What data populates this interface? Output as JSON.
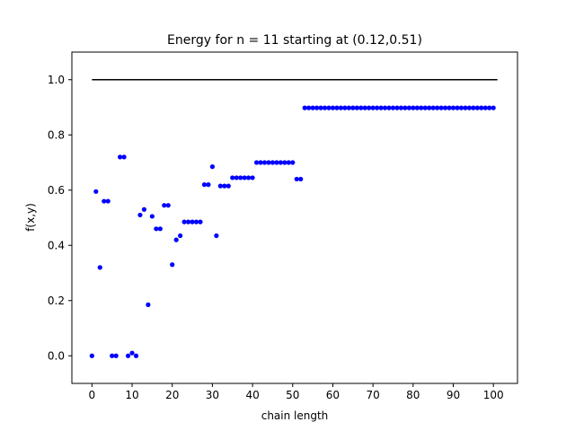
{
  "chart_data": {
    "type": "scatter",
    "title": "Energy for n = 11 starting at (0.12,0.51)",
    "xlabel": "chain length",
    "ylabel": "f(x,y)",
    "xlim": [
      -5,
      106
    ],
    "ylim": [
      -0.1,
      1.1
    ],
    "xticks": [
      0,
      10,
      20,
      30,
      40,
      50,
      60,
      70,
      80,
      90,
      100
    ],
    "yticks": [
      0.0,
      0.2,
      0.4,
      0.6,
      0.8,
      1.0
    ],
    "ytick_labels": [
      "0.0",
      "0.2",
      "0.4",
      "0.6",
      "0.8",
      "1.0"
    ],
    "grid": false,
    "reference_line": {
      "y": 1.0,
      "x": [
        0,
        101
      ],
      "color": "#000000"
    },
    "marker_color": "#0000ff",
    "points": [
      [
        0,
        0.0
      ],
      [
        1,
        0.595
      ],
      [
        2,
        0.32
      ],
      [
        3,
        0.56
      ],
      [
        4,
        0.56
      ],
      [
        5,
        0.0
      ],
      [
        6,
        0.0
      ],
      [
        7,
        0.72
      ],
      [
        8,
        0.72
      ],
      [
        9,
        0.0
      ],
      [
        10,
        0.01
      ],
      [
        11,
        0.0
      ],
      [
        12,
        0.51
      ],
      [
        13,
        0.53
      ],
      [
        14,
        0.185
      ],
      [
        15,
        0.505
      ],
      [
        16,
        0.46
      ],
      [
        17,
        0.46
      ],
      [
        18,
        0.545
      ],
      [
        19,
        0.545
      ],
      [
        20,
        0.33
      ],
      [
        21,
        0.42
      ],
      [
        22,
        0.435
      ],
      [
        23,
        0.485
      ],
      [
        24,
        0.485
      ],
      [
        25,
        0.485
      ],
      [
        26,
        0.485
      ],
      [
        27,
        0.485
      ],
      [
        28,
        0.62
      ],
      [
        29,
        0.62
      ],
      [
        30,
        0.685
      ],
      [
        31,
        0.435
      ],
      [
        32,
        0.615
      ],
      [
        33,
        0.615
      ],
      [
        34,
        0.615
      ],
      [
        35,
        0.645
      ],
      [
        36,
        0.645
      ],
      [
        37,
        0.645
      ],
      [
        38,
        0.645
      ],
      [
        39,
        0.645
      ],
      [
        40,
        0.645
      ],
      [
        41,
        0.7
      ],
      [
        42,
        0.7
      ],
      [
        43,
        0.7
      ],
      [
        44,
        0.7
      ],
      [
        45,
        0.7
      ],
      [
        46,
        0.7
      ],
      [
        47,
        0.7
      ],
      [
        48,
        0.7
      ],
      [
        49,
        0.7
      ],
      [
        50,
        0.7
      ],
      [
        51,
        0.64
      ],
      [
        52,
        0.64
      ],
      [
        53,
        0.898
      ],
      [
        54,
        0.898
      ],
      [
        55,
        0.898
      ],
      [
        56,
        0.898
      ],
      [
        57,
        0.898
      ],
      [
        58,
        0.898
      ],
      [
        59,
        0.898
      ],
      [
        60,
        0.898
      ],
      [
        61,
        0.898
      ],
      [
        62,
        0.898
      ],
      [
        63,
        0.898
      ],
      [
        64,
        0.898
      ],
      [
        65,
        0.898
      ],
      [
        66,
        0.898
      ],
      [
        67,
        0.898
      ],
      [
        68,
        0.898
      ],
      [
        69,
        0.898
      ],
      [
        70,
        0.898
      ],
      [
        71,
        0.898
      ],
      [
        72,
        0.898
      ],
      [
        73,
        0.898
      ],
      [
        74,
        0.898
      ],
      [
        75,
        0.898
      ],
      [
        76,
        0.898
      ],
      [
        77,
        0.898
      ],
      [
        78,
        0.898
      ],
      [
        79,
        0.898
      ],
      [
        80,
        0.898
      ],
      [
        81,
        0.898
      ],
      [
        82,
        0.898
      ],
      [
        83,
        0.898
      ],
      [
        84,
        0.898
      ],
      [
        85,
        0.898
      ],
      [
        86,
        0.898
      ],
      [
        87,
        0.898
      ],
      [
        88,
        0.898
      ],
      [
        89,
        0.898
      ],
      [
        90,
        0.898
      ],
      [
        91,
        0.898
      ],
      [
        92,
        0.898
      ],
      [
        93,
        0.898
      ],
      [
        94,
        0.898
      ],
      [
        95,
        0.898
      ],
      [
        96,
        0.898
      ],
      [
        97,
        0.898
      ],
      [
        98,
        0.898
      ],
      [
        99,
        0.898
      ],
      [
        100,
        0.898
      ]
    ]
  }
}
